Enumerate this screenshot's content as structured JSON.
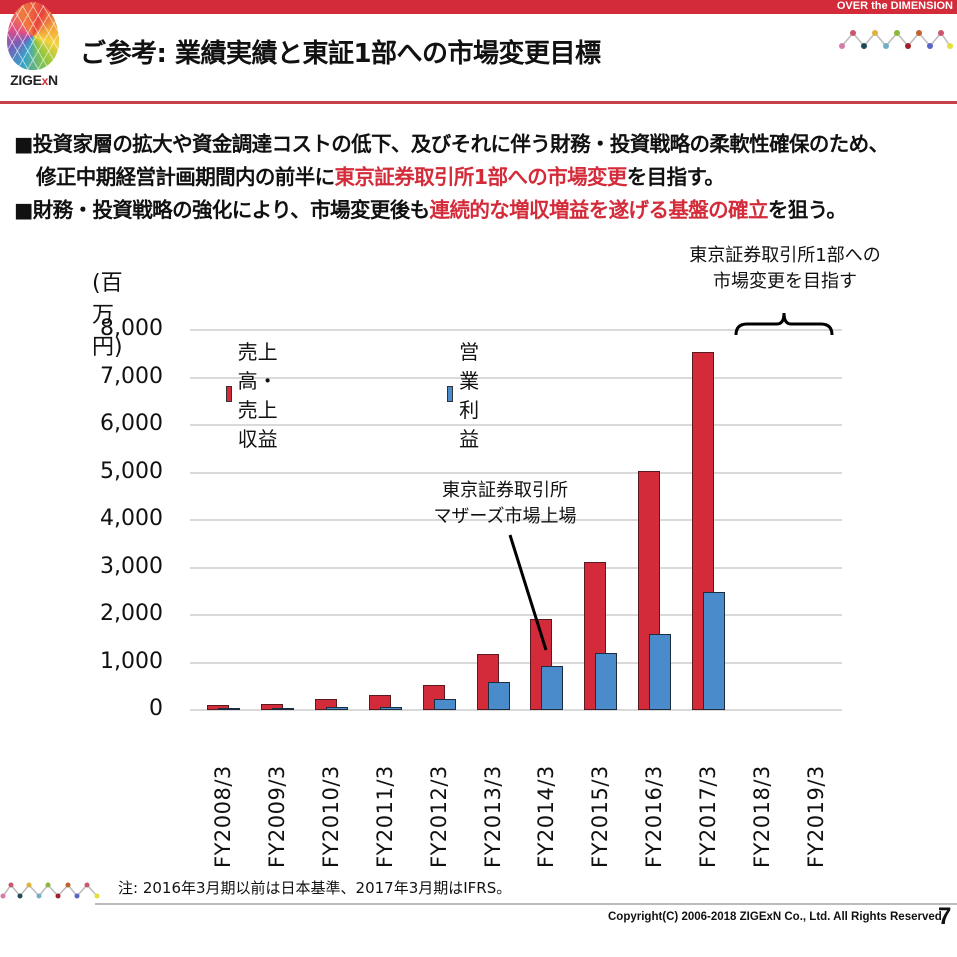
{
  "header": {
    "tagline": "OVER the DIMENSION",
    "logo_text_a": "ZIGE",
    "logo_text_x": "x",
    "logo_text_b": "N",
    "title": "ご参考: 業績実績と東証1部への市場変更目標"
  },
  "bullets": {
    "b1_line1": "■投資家層の拡大や資金調達コストの低下、及びそれに伴う財務・投資戦略の柔軟性確保のため、",
    "b1_line2_pre": "修正中期経営計画期間内の前半に",
    "b1_line2_red": "東京証券取引所1部への市場変更",
    "b1_line2_post": "を目指す。",
    "b2_pre": "■財務・投資戦略の強化により、市場変更後も",
    "b2_red": "連続的な増収増益を遂げる基盤の確立",
    "b2_post": "を狙う。"
  },
  "colors": {
    "brand_red": "#d42b3a",
    "series_revenue": "#d42b3a",
    "series_profit": "#4a8bcc"
  },
  "chart_data": {
    "type": "bar",
    "title": "",
    "ylabel": "(百万円)",
    "xlabel": "",
    "ylim": [
      0,
      8000
    ],
    "yticks": [
      "0",
      "1,000",
      "2,000",
      "3,000",
      "4,000",
      "5,000",
      "6,000",
      "7,000",
      "8,000"
    ],
    "grid": true,
    "legend_position": "top-left",
    "categories": [
      "FY2008/3",
      "FY2009/3",
      "FY2010/3",
      "FY2011/3",
      "FY2012/3",
      "FY2013/3",
      "FY2014/3",
      "FY2015/3",
      "FY2016/3",
      "FY2017/3",
      "FY2018/3",
      "FY2019/3"
    ],
    "series": [
      {
        "name": "売上高・売上収益",
        "color": "#d42b3a",
        "values": [
          110,
          130,
          230,
          320,
          530,
          1180,
          1920,
          3120,
          5030,
          7540,
          null,
          null
        ]
      },
      {
        "name": "営業利益",
        "color": "#4a8bcc",
        "values": [
          20,
          25,
          70,
          70,
          230,
          590,
          920,
          1210,
          1610,
          2490,
          null,
          null
        ]
      }
    ],
    "annotations": [
      {
        "text_line1": "東京証券取引所",
        "text_line2": "マザーズ市場上場",
        "points_to": "FY2014/3"
      },
      {
        "text_line1": "東京証券取引所1部への",
        "text_line2": "市場変更を目指す",
        "spans": [
          "FY2018/3",
          "FY2019/3"
        ]
      }
    ]
  },
  "footer": {
    "note": "注: 2016年3月期以前は日本基準、2017年3月期はIFRS。",
    "copyright": "Copyright(C) 2006-2018 ZIGExN Co., Ltd. All Rights Reserved.",
    "page_number": "7"
  }
}
